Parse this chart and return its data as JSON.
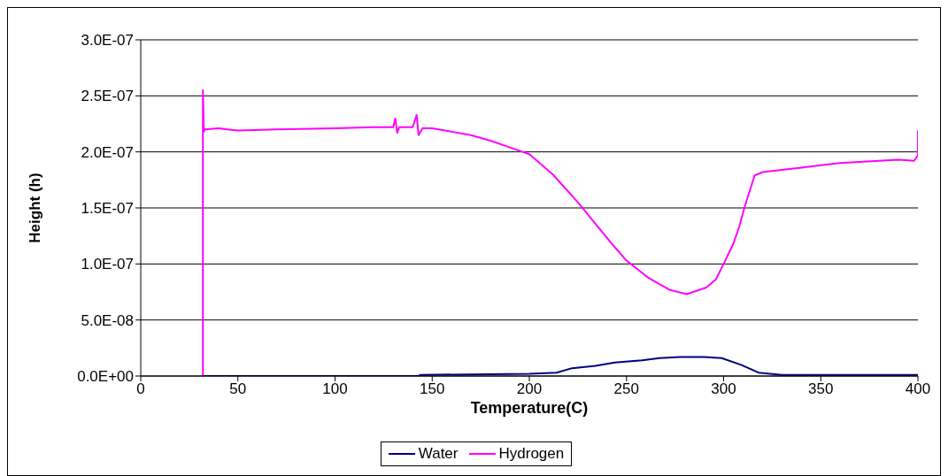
{
  "chart_data": {
    "type": "line",
    "xlabel": "Temperature(C)",
    "ylabel": "Height (h)",
    "xlim": [
      0,
      400
    ],
    "xticks": [
      0,
      50,
      100,
      150,
      200,
      250,
      300,
      350,
      400
    ],
    "ylim": [
      0,
      3e-07
    ],
    "yticks": [
      {
        "value": 0,
        "label": "0.0E+00"
      },
      {
        "value": 5e-08,
        "label": "5.0E-08"
      },
      {
        "value": 1e-07,
        "label": "1.0E-07"
      },
      {
        "value": 1.5e-07,
        "label": "1.5E-07"
      },
      {
        "value": 2e-07,
        "label": "2.0E-07"
      },
      {
        "value": 2.5e-07,
        "label": "2.5E-07"
      },
      {
        "value": 3e-07,
        "label": "3.0E-07"
      }
    ],
    "grid": "y",
    "legend": "bottom",
    "marker": "none",
    "line_style": "solid",
    "series": [
      {
        "name": "Water",
        "color": "#000080",
        "x": [
          32,
          100,
          143,
          144,
          200,
          214,
          222,
          234,
          244,
          258,
          267,
          278,
          290,
          299,
          309,
          318,
          330,
          360,
          400
        ],
        "values": [
          0,
          0,
          0,
          1e-09,
          2e-09,
          3e-09,
          7e-09,
          9e-09,
          1.2e-08,
          1.4e-08,
          1.6e-08,
          1.7e-08,
          1.7e-08,
          1.6e-08,
          1e-08,
          3e-09,
          1e-09,
          1e-09,
          1e-09
        ]
      },
      {
        "name": "Hydrogen",
        "color": "#ff00ff",
        "x": [
          32,
          32,
          32.5,
          33,
          40,
          50,
          70,
          100,
          120,
          130,
          131,
          132,
          133,
          140,
          142,
          143,
          145,
          150,
          160,
          170,
          180,
          190,
          200,
          212,
          225,
          241,
          250,
          261,
          272,
          281,
          291,
          296,
          300,
          305,
          308,
          311,
          316,
          320,
          330,
          340,
          350,
          360,
          370,
          380,
          390,
          398,
          400,
          400
        ],
        "values": [
          0,
          2.55e-07,
          2.18e-07,
          2.2e-07,
          2.21e-07,
          2.19e-07,
          2.2e-07,
          2.21e-07,
          2.22e-07,
          2.22e-07,
          2.3e-07,
          2.17e-07,
          2.22e-07,
          2.22e-07,
          2.33e-07,
          2.15e-07,
          2.21e-07,
          2.21e-07,
          2.18e-07,
          2.15e-07,
          2.1e-07,
          2.04e-07,
          1.98e-07,
          1.8e-07,
          1.55e-07,
          1.21e-07,
          1.03e-07,
          8.8e-08,
          7.7e-08,
          7.3e-08,
          7.9e-08,
          8.6e-08,
          1e-07,
          1.18e-07,
          1.33e-07,
          1.52e-07,
          1.79e-07,
          1.82e-07,
          1.84e-07,
          1.86e-07,
          1.88e-07,
          1.9e-07,
          1.91e-07,
          1.92e-07,
          1.93e-07,
          1.92e-07,
          1.97e-07,
          2.19e-07
        ]
      }
    ]
  }
}
